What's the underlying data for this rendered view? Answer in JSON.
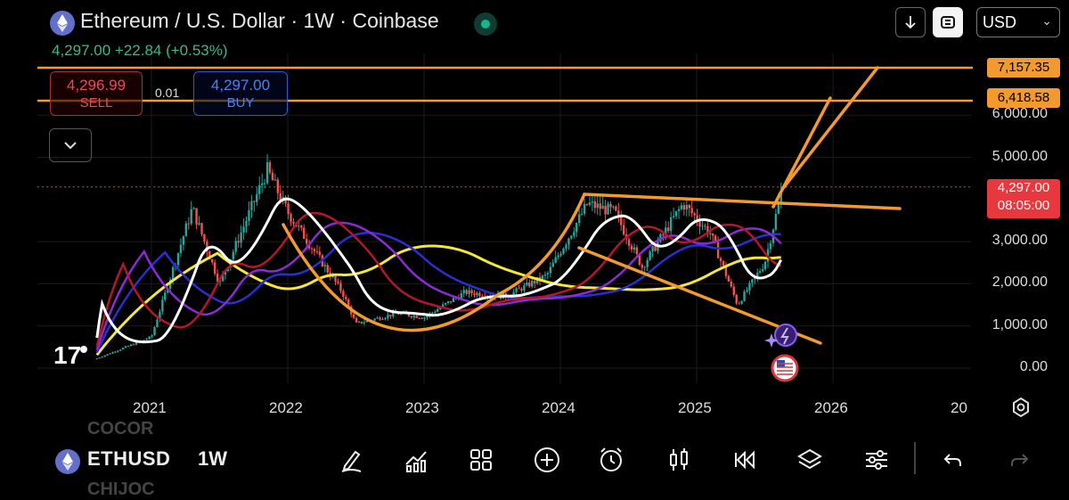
{
  "header": {
    "title": "Ethereum / U.S. Dollar · 1W · Coinbase",
    "price_line": "4,297.00  +22.84 (+0.53%)",
    "currency": "USD",
    "icons": [
      "ethereum-logo-icon",
      "live-status-icon",
      "download-arrow-icon",
      "fullscreen-icon",
      "chevron-down-icon"
    ]
  },
  "trade": {
    "sell_price": "4,296.99",
    "sell_label": "SELL",
    "spread": "0.01",
    "buy_price": "4,297.00",
    "buy_label": "BUY"
  },
  "chart": {
    "tv_logo": "17",
    "y_labels": [
      "6,000.00",
      "5,000.00",
      "3,000.00",
      "2,000.00",
      "1,000.00",
      "0.00"
    ],
    "x_labels": [
      "2021",
      "2022",
      "2023",
      "2024",
      "2025",
      "2026",
      "20"
    ],
    "price_tag": "4,297.00",
    "countdown": "08:05:00",
    "hline1_label": "7,157.35",
    "hline2_label": "6,418.58",
    "colors": {
      "candle_up": "#26a69a",
      "candle_down": "#ef5350",
      "orange": "#f29a2e",
      "ma_white": "#ffffff",
      "ma_yellow": "#f5e63a",
      "ma_blue": "#2b2fd1",
      "ma_purple": "#8a2bd6",
      "ma_red": "#b3172b"
    }
  },
  "chart_data": {
    "type": "line",
    "title": "Ethereum / U.S. Dollar · 1W · Coinbase",
    "x": [
      "2020.6",
      "2021.0",
      "2021.3",
      "2021.5",
      "2021.85",
      "2022.0",
      "2022.4",
      "2022.5",
      "2022.8",
      "2023.0",
      "2023.3",
      "2023.6",
      "2023.9",
      "2024.2",
      "2024.4",
      "2024.6",
      "2024.9",
      "2025.1",
      "2025.3",
      "2025.5",
      "2025.63"
    ],
    "series": [
      {
        "name": "price",
        "values": [
          230,
          740,
          3800,
          2000,
          4700,
          3700,
          1800,
          1050,
          1300,
          1200,
          1800,
          1700,
          2200,
          3900,
          3700,
          2400,
          3900,
          3200,
          1500,
          2500,
          4297
        ]
      }
    ],
    "hlines": [
      7157.35,
      6418.58
    ],
    "last_price": 4297.0,
    "ylim": [
      0,
      7500
    ],
    "xlabel": "",
    "ylabel": ""
  },
  "bottom": {
    "symbol": "ETHUSD",
    "timeframe": "1W",
    "ghost_top": "COCOR",
    "ghost_bottom": "CHIJOC",
    "tools": [
      "draw-pen-icon",
      "indicators-icon",
      "layouts-grid-icon",
      "add-circle-icon",
      "alert-clock-icon",
      "candles-icon",
      "replay-icon",
      "layers-icon",
      "settings-sliders-icon",
      "undo-icon",
      "redo-icon"
    ]
  }
}
